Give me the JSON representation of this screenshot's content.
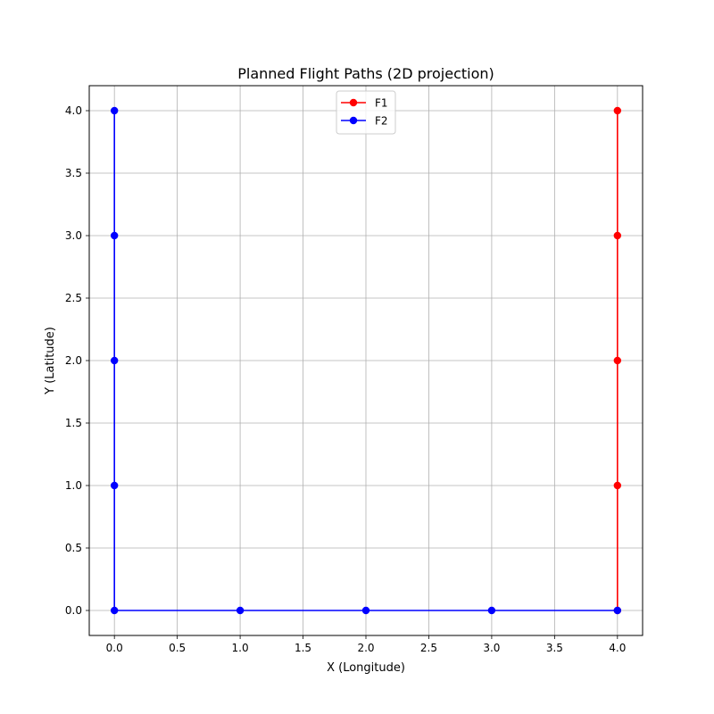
{
  "chart_data": {
    "type": "line",
    "title": "Planned Flight Paths (2D projection)",
    "xlabel": "X (Longitude)",
    "ylabel": "Y (Latitude)",
    "xlim": [
      -0.2,
      4.2
    ],
    "ylim": [
      -0.2,
      4.2
    ],
    "xticks": [
      0.0,
      0.5,
      1.0,
      1.5,
      2.0,
      2.5,
      3.0,
      3.5,
      4.0
    ],
    "yticks": [
      0.0,
      0.5,
      1.0,
      1.5,
      2.0,
      2.5,
      3.0,
      3.5,
      4.0
    ],
    "xtick_labels": [
      "0.0",
      "0.5",
      "1.0",
      "1.5",
      "2.0",
      "2.5",
      "3.0",
      "3.5",
      "4.0"
    ],
    "ytick_labels": [
      "0.0",
      "0.5",
      "1.0",
      "1.5",
      "2.0",
      "2.5",
      "3.0",
      "3.5",
      "4.0"
    ],
    "grid": true,
    "legend_position": "top-center",
    "series": [
      {
        "name": "F1",
        "color": "#ff0000",
        "marker": "circle",
        "x": [
          4,
          4,
          4,
          4,
          4
        ],
        "y": [
          0,
          1,
          2,
          3,
          4
        ]
      },
      {
        "name": "F2",
        "color": "#0000ff",
        "marker": "circle",
        "x": [
          4,
          3,
          2,
          1,
          0,
          0,
          0,
          0,
          0
        ],
        "y": [
          0,
          0,
          0,
          0,
          0,
          1,
          2,
          3,
          4
        ]
      }
    ]
  }
}
